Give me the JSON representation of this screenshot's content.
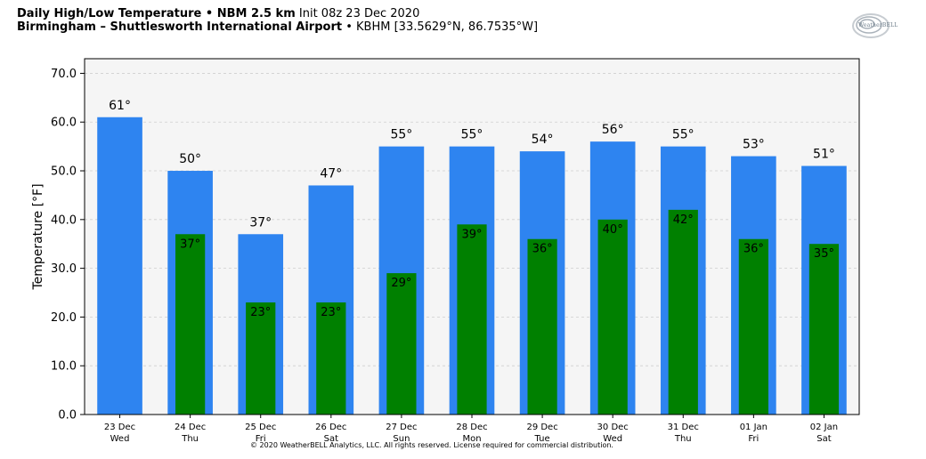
{
  "header": {
    "title_bold": "Daily High/Low Temperature • NBM 2.5 km",
    "title_init": "Init 08z 23 Dec 2020",
    "location_bold": "Birmingham – Shuttlesworth International Airport",
    "location_detail": "• KBHM [33.5629°N, 86.7535°W]"
  },
  "logo": {
    "text": "WeatherBELL",
    "icon": "weatherbell-swirl-logo-icon"
  },
  "copyright": "© 2020 WeatherBELL Analytics, LLC. All rights reserved. License required for commercial distribution.",
  "chart_data": {
    "type": "bar",
    "title": "Daily High/Low Temperature • NBM 2.5 km",
    "ylabel": "Temperature [°F]",
    "xlabel": "",
    "ylim": [
      0,
      73
    ],
    "yticks": [
      "0.0",
      "10.0",
      "20.0",
      "30.0",
      "40.0",
      "50.0",
      "60.0",
      "70.0"
    ],
    "ytick_values": [
      0,
      10,
      20,
      30,
      40,
      50,
      60,
      70
    ],
    "grid": true,
    "categories": [
      "23 Dec",
      "24 Dec",
      "25 Dec",
      "26 Dec",
      "27 Dec",
      "28 Dec",
      "29 Dec",
      "30 Dec",
      "31 Dec",
      "01 Jan",
      "02 Jan"
    ],
    "weekdays": [
      "Wed",
      "Thu",
      "Fri",
      "Sat",
      "Sun",
      "Mon",
      "Tue",
      "Wed",
      "Thu",
      "Fri",
      "Sat"
    ],
    "series": [
      {
        "values": [
          61,
          50,
          37,
          47,
          55,
          55,
          54,
          56,
          55,
          53,
          51
        ],
        "labels": [
          "61°",
          "50°",
          "37°",
          "47°",
          "55°",
          "55°",
          "54°",
          "56°",
          "55°",
          "53°",
          "51°"
        ],
        "color": "#2e84f0"
      },
      {
        "values": [
          null,
          37,
          23,
          23,
          29,
          39,
          36,
          40,
          42,
          36,
          35
        ],
        "labels": [
          "",
          "37°",
          "23°",
          "23°",
          "29°",
          "39°",
          "36°",
          "40°",
          "42°",
          "36°",
          "35°"
        ],
        "color": "#008000"
      }
    ],
    "plot_background": "#f5f5f5"
  }
}
